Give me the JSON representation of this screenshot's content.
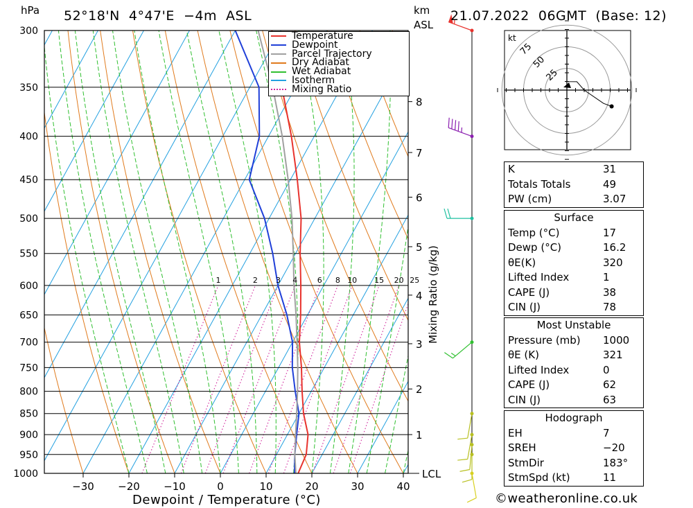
{
  "header": {
    "left_unit": "hPa",
    "location": "52°18'N  4°47'E  −4m  ASL",
    "km_unit": "km",
    "km_unit2": "ASL",
    "datetime": "21.07.2022  06GMT  (Base: 12)"
  },
  "chart_data": {
    "type": "line",
    "title": "52°18'N  4°47'E  −4m  ASL",
    "xlabel": "Dewpoint / Temperature (°C)",
    "ylabel": "hPa",
    "y_axis_scale": "log",
    "xlim": [
      -40,
      40
    ],
    "ylim": [
      1000,
      300
    ],
    "skew": "skew-T",
    "x_ticks": [
      -30,
      -20,
      -10,
      0,
      10,
      20,
      30,
      40
    ],
    "x_tick_labels": [
      "−30",
      "−20",
      "−10",
      "0",
      "10",
      "20",
      "30",
      "40"
    ],
    "pressure_levels": [
      300,
      350,
      400,
      450,
      500,
      550,
      600,
      650,
      700,
      750,
      800,
      850,
      900,
      950,
      1000
    ],
    "km_ticks": [
      {
        "km": "8",
        "p": 364
      },
      {
        "km": "7",
        "p": 418
      },
      {
        "km": "6",
        "p": 472
      },
      {
        "km": "5",
        "p": 540
      },
      {
        "km": "4",
        "p": 616
      },
      {
        "km": "3",
        "p": 703
      },
      {
        "km": "2",
        "p": 795
      },
      {
        "km": "1",
        "p": 900
      }
    ],
    "lcl_label": "LCL",
    "lcl_pressure": 1000,
    "mixing_ratio_axis_label": "Mixing Ratio (g/kg)",
    "mixing_ratios": [
      "1",
      "2",
      "3",
      "4",
      "6",
      "8",
      "10",
      "15",
      "20",
      "25"
    ],
    "grid": true,
    "legend_position": "top-right",
    "legend": [
      {
        "label": "Temperature",
        "color": "#e8322d",
        "style": "solid"
      },
      {
        "label": "Dewpoint",
        "color": "#1f3fd8",
        "style": "solid"
      },
      {
        "label": "Parcel Trajectory",
        "color": "#a0a0a0",
        "style": "solid"
      },
      {
        "label": "Dry Adiabat",
        "color": "#e07a1c",
        "style": "solid"
      },
      {
        "label": "Wet Adiabat",
        "color": "#2fbf2f",
        "style": "solid"
      },
      {
        "label": "Isotherm",
        "color": "#22a0e0",
        "style": "solid"
      },
      {
        "label": "Mixing Ratio",
        "color": "#d0209a",
        "style": "dotted"
      }
    ],
    "series": [
      {
        "name": "Temperature",
        "color": "#e8322d",
        "points": [
          [
            1000,
            17
          ],
          [
            950,
            16.5
          ],
          [
            900,
            14.5
          ],
          [
            850,
            11
          ],
          [
            800,
            8
          ],
          [
            750,
            5
          ],
          [
            700,
            1.5
          ],
          [
            650,
            -1.5
          ],
          [
            600,
            -5
          ],
          [
            550,
            -9
          ],
          [
            500,
            -13
          ],
          [
            450,
            -18.5
          ],
          [
            400,
            -25
          ],
          [
            350,
            -33
          ],
          [
            300,
            -42
          ]
        ]
      },
      {
        "name": "Dewpoint",
        "color": "#1f3fd8",
        "points": [
          [
            1000,
            16.2
          ],
          [
            950,
            14
          ],
          [
            900,
            12
          ],
          [
            850,
            10
          ],
          [
            800,
            6.5
          ],
          [
            750,
            3
          ],
          [
            700,
            0
          ],
          [
            650,
            -4.5
          ],
          [
            600,
            -10
          ],
          [
            550,
            -15
          ],
          [
            500,
            -21
          ],
          [
            450,
            -29
          ],
          [
            400,
            -32
          ],
          [
            350,
            -38
          ],
          [
            300,
            -50
          ]
        ]
      },
      {
        "name": "Parcel Trajectory",
        "color": "#a0a0a0",
        "points": [
          [
            1000,
            16.5
          ],
          [
            950,
            14
          ],
          [
            900,
            11.8
          ],
          [
            850,
            9.5
          ],
          [
            800,
            7
          ],
          [
            750,
            4.2
          ],
          [
            700,
            1
          ],
          [
            650,
            -2.5
          ],
          [
            600,
            -6.5
          ],
          [
            550,
            -10.5
          ],
          [
            500,
            -15
          ],
          [
            450,
            -20.5
          ],
          [
            400,
            -27
          ],
          [
            350,
            -35
          ],
          [
            300,
            -45
          ]
        ]
      }
    ],
    "wind_barbs": [
      {
        "p": 300,
        "dir": 290,
        "speed_kt": 55,
        "color": "#e8322d"
      },
      {
        "p": 400,
        "dir": 290,
        "speed_kt": 45,
        "color": "#8b1fb0"
      },
      {
        "p": 500,
        "dir": 270,
        "speed_kt": 20,
        "color": "#1ec0a0"
      },
      {
        "p": 700,
        "dir": 230,
        "speed_kt": 15,
        "color": "#30c030"
      },
      {
        "p": 850,
        "dir": 190,
        "speed_kt": 10,
        "color": "#b8c020"
      },
      {
        "p": 900,
        "dir": 190,
        "speed_kt": 10,
        "color": "#b8c020"
      },
      {
        "p": 925,
        "dir": 185,
        "speed_kt": 10,
        "color": "#b8c020"
      },
      {
        "p": 950,
        "dir": 180,
        "speed_kt": 10,
        "color": "#b8c020"
      },
      {
        "p": 1000,
        "dir": 170,
        "speed_kt": 10,
        "color": "#d8d020"
      }
    ]
  },
  "hodograph": {
    "unit": "kt",
    "ring_labels": [
      "25",
      "50",
      "75"
    ],
    "ring_values": [
      25,
      50,
      75
    ]
  },
  "indices": {
    "rows": [
      {
        "label": "K",
        "value": "31"
      },
      {
        "label": "Totals Totals",
        "value": "49"
      },
      {
        "label": "PW (cm)",
        "value": "3.07"
      }
    ]
  },
  "surface": {
    "title": "Surface",
    "rows": [
      {
        "label": "Temp (°C)",
        "value": "17"
      },
      {
        "label": "Dewp (°C)",
        "value": "16.2"
      },
      {
        "label": "θE(K)",
        "value": "320"
      },
      {
        "label": "Lifted Index",
        "value": "1"
      },
      {
        "label": "CAPE (J)",
        "value": "38"
      },
      {
        "label": "CIN (J)",
        "value": "78"
      }
    ]
  },
  "most_unstable": {
    "title": "Most Unstable",
    "rows": [
      {
        "label": "Pressure (mb)",
        "value": "1000"
      },
      {
        "label": "θE (K)",
        "value": "321"
      },
      {
        "label": "Lifted Index",
        "value": "0"
      },
      {
        "label": "CAPE (J)",
        "value": "62"
      },
      {
        "label": "CIN (J)",
        "value": "63"
      }
    ]
  },
  "hodograph_table": {
    "title": "Hodograph",
    "rows": [
      {
        "label": "EH",
        "value": "7"
      },
      {
        "label": "SREH",
        "value": "−20"
      },
      {
        "label": "StmDir",
        "value": "183°"
      },
      {
        "label": "StmSpd (kt)",
        "value": "11"
      }
    ]
  },
  "footer": {
    "copyright_symbol": "©",
    "site": "weatheronline.co.uk"
  }
}
